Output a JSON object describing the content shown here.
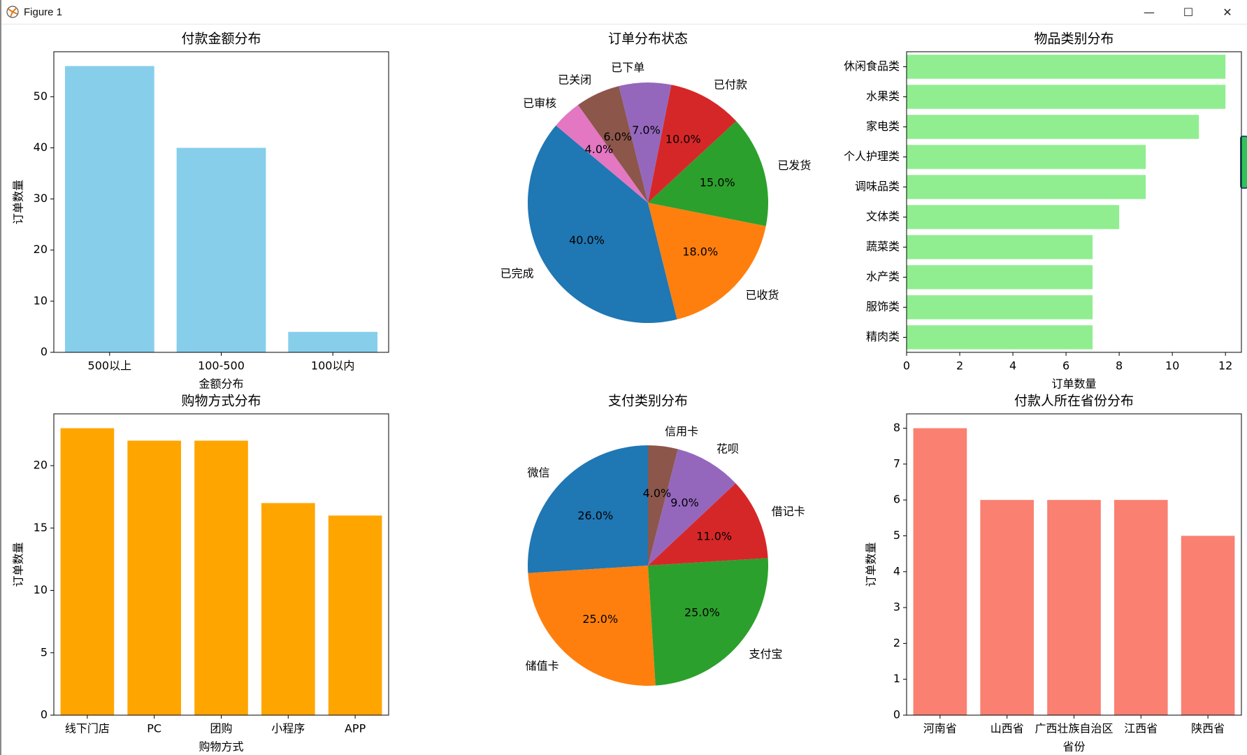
{
  "window": {
    "title": "Figure 1",
    "minimize": "—",
    "maximize": "☐",
    "close": "✕"
  },
  "colors": {
    "bar1": "#87CEEB",
    "bar2": "#90EE90",
    "bar3": "#FFA500",
    "bar4": "#FA8072",
    "pie": [
      "#1f77b4",
      "#ff7f0e",
      "#2ca02c",
      "#d62728",
      "#9467bd",
      "#8c564b",
      "#e377c2"
    ]
  },
  "chart_data": [
    {
      "id": "amount",
      "type": "bar",
      "title": "付款金额分布",
      "xlabel": "金额分布",
      "ylabel": "订单数量",
      "categories": [
        "500以上",
        "100-500",
        "100以内"
      ],
      "values": [
        56,
        40,
        4
      ],
      "ylim": [
        0,
        58.8
      ],
      "yticks": [
        0,
        10,
        20,
        30,
        40,
        50
      ]
    },
    {
      "id": "status",
      "type": "pie",
      "title": "订单分布状态",
      "labels": [
        "已完成",
        "已收货",
        "已发货",
        "已付款",
        "已下单",
        "已关闭",
        "已审核"
      ],
      "values": [
        40.0,
        18.0,
        15.0,
        10.0,
        7.0,
        6.0,
        4.0
      ],
      "autopct": [
        "40.0%",
        "18.0%",
        "15.0%",
        "10.0%",
        "7.0%",
        "6.0%",
        "4.0%"
      ],
      "startangle": 140
    },
    {
      "id": "category",
      "type": "barh",
      "title": "物品类别分布",
      "xlabel": "订单数量",
      "ylabel": "",
      "categories": [
        "休闲食品类",
        "水果类",
        "家电类",
        "个人护理类",
        "调味品类",
        "文体类",
        "蔬菜类",
        "水产类",
        "服饰类",
        "精肉类"
      ],
      "values": [
        12,
        12,
        11,
        9,
        9,
        8,
        7,
        7,
        7,
        7
      ],
      "xlim": [
        0,
        12.6
      ],
      "xticks": [
        0,
        2,
        4,
        6,
        8,
        10,
        12
      ]
    },
    {
      "id": "shopping",
      "type": "bar",
      "title": "购物方式分布",
      "xlabel": "购物方式",
      "ylabel": "订单数量",
      "categories": [
        "线下门店",
        "PC",
        "团购",
        "小程序",
        "APP"
      ],
      "values": [
        23,
        22,
        22,
        17,
        16
      ],
      "ylim": [
        0,
        24.15
      ],
      "yticks": [
        0,
        5,
        10,
        15,
        20
      ]
    },
    {
      "id": "payment",
      "type": "pie",
      "title": "支付类别分布",
      "labels": [
        "微信",
        "储值卡",
        "支付宝",
        "借记卡",
        "花呗",
        "信用卡"
      ],
      "values": [
        26.0,
        25.0,
        25.0,
        11.0,
        9.0,
        4.0
      ],
      "autopct": [
        "26.0%",
        "25.0%",
        "25.0%",
        "11.0%",
        "9.0%",
        "4.0%"
      ],
      "startangle": 90
    },
    {
      "id": "province",
      "type": "bar",
      "title": "付款人所在省份分布",
      "xlabel": "省份",
      "ylabel": "订单数量",
      "categories": [
        "河南省",
        "山西省",
        "广西壮族自治区",
        "江西省",
        "陕西省"
      ],
      "values": [
        8,
        6,
        6,
        6,
        5
      ],
      "ylim": [
        0,
        8.4
      ],
      "yticks": [
        0,
        1,
        2,
        3,
        4,
        5,
        6,
        7,
        8
      ]
    }
  ]
}
